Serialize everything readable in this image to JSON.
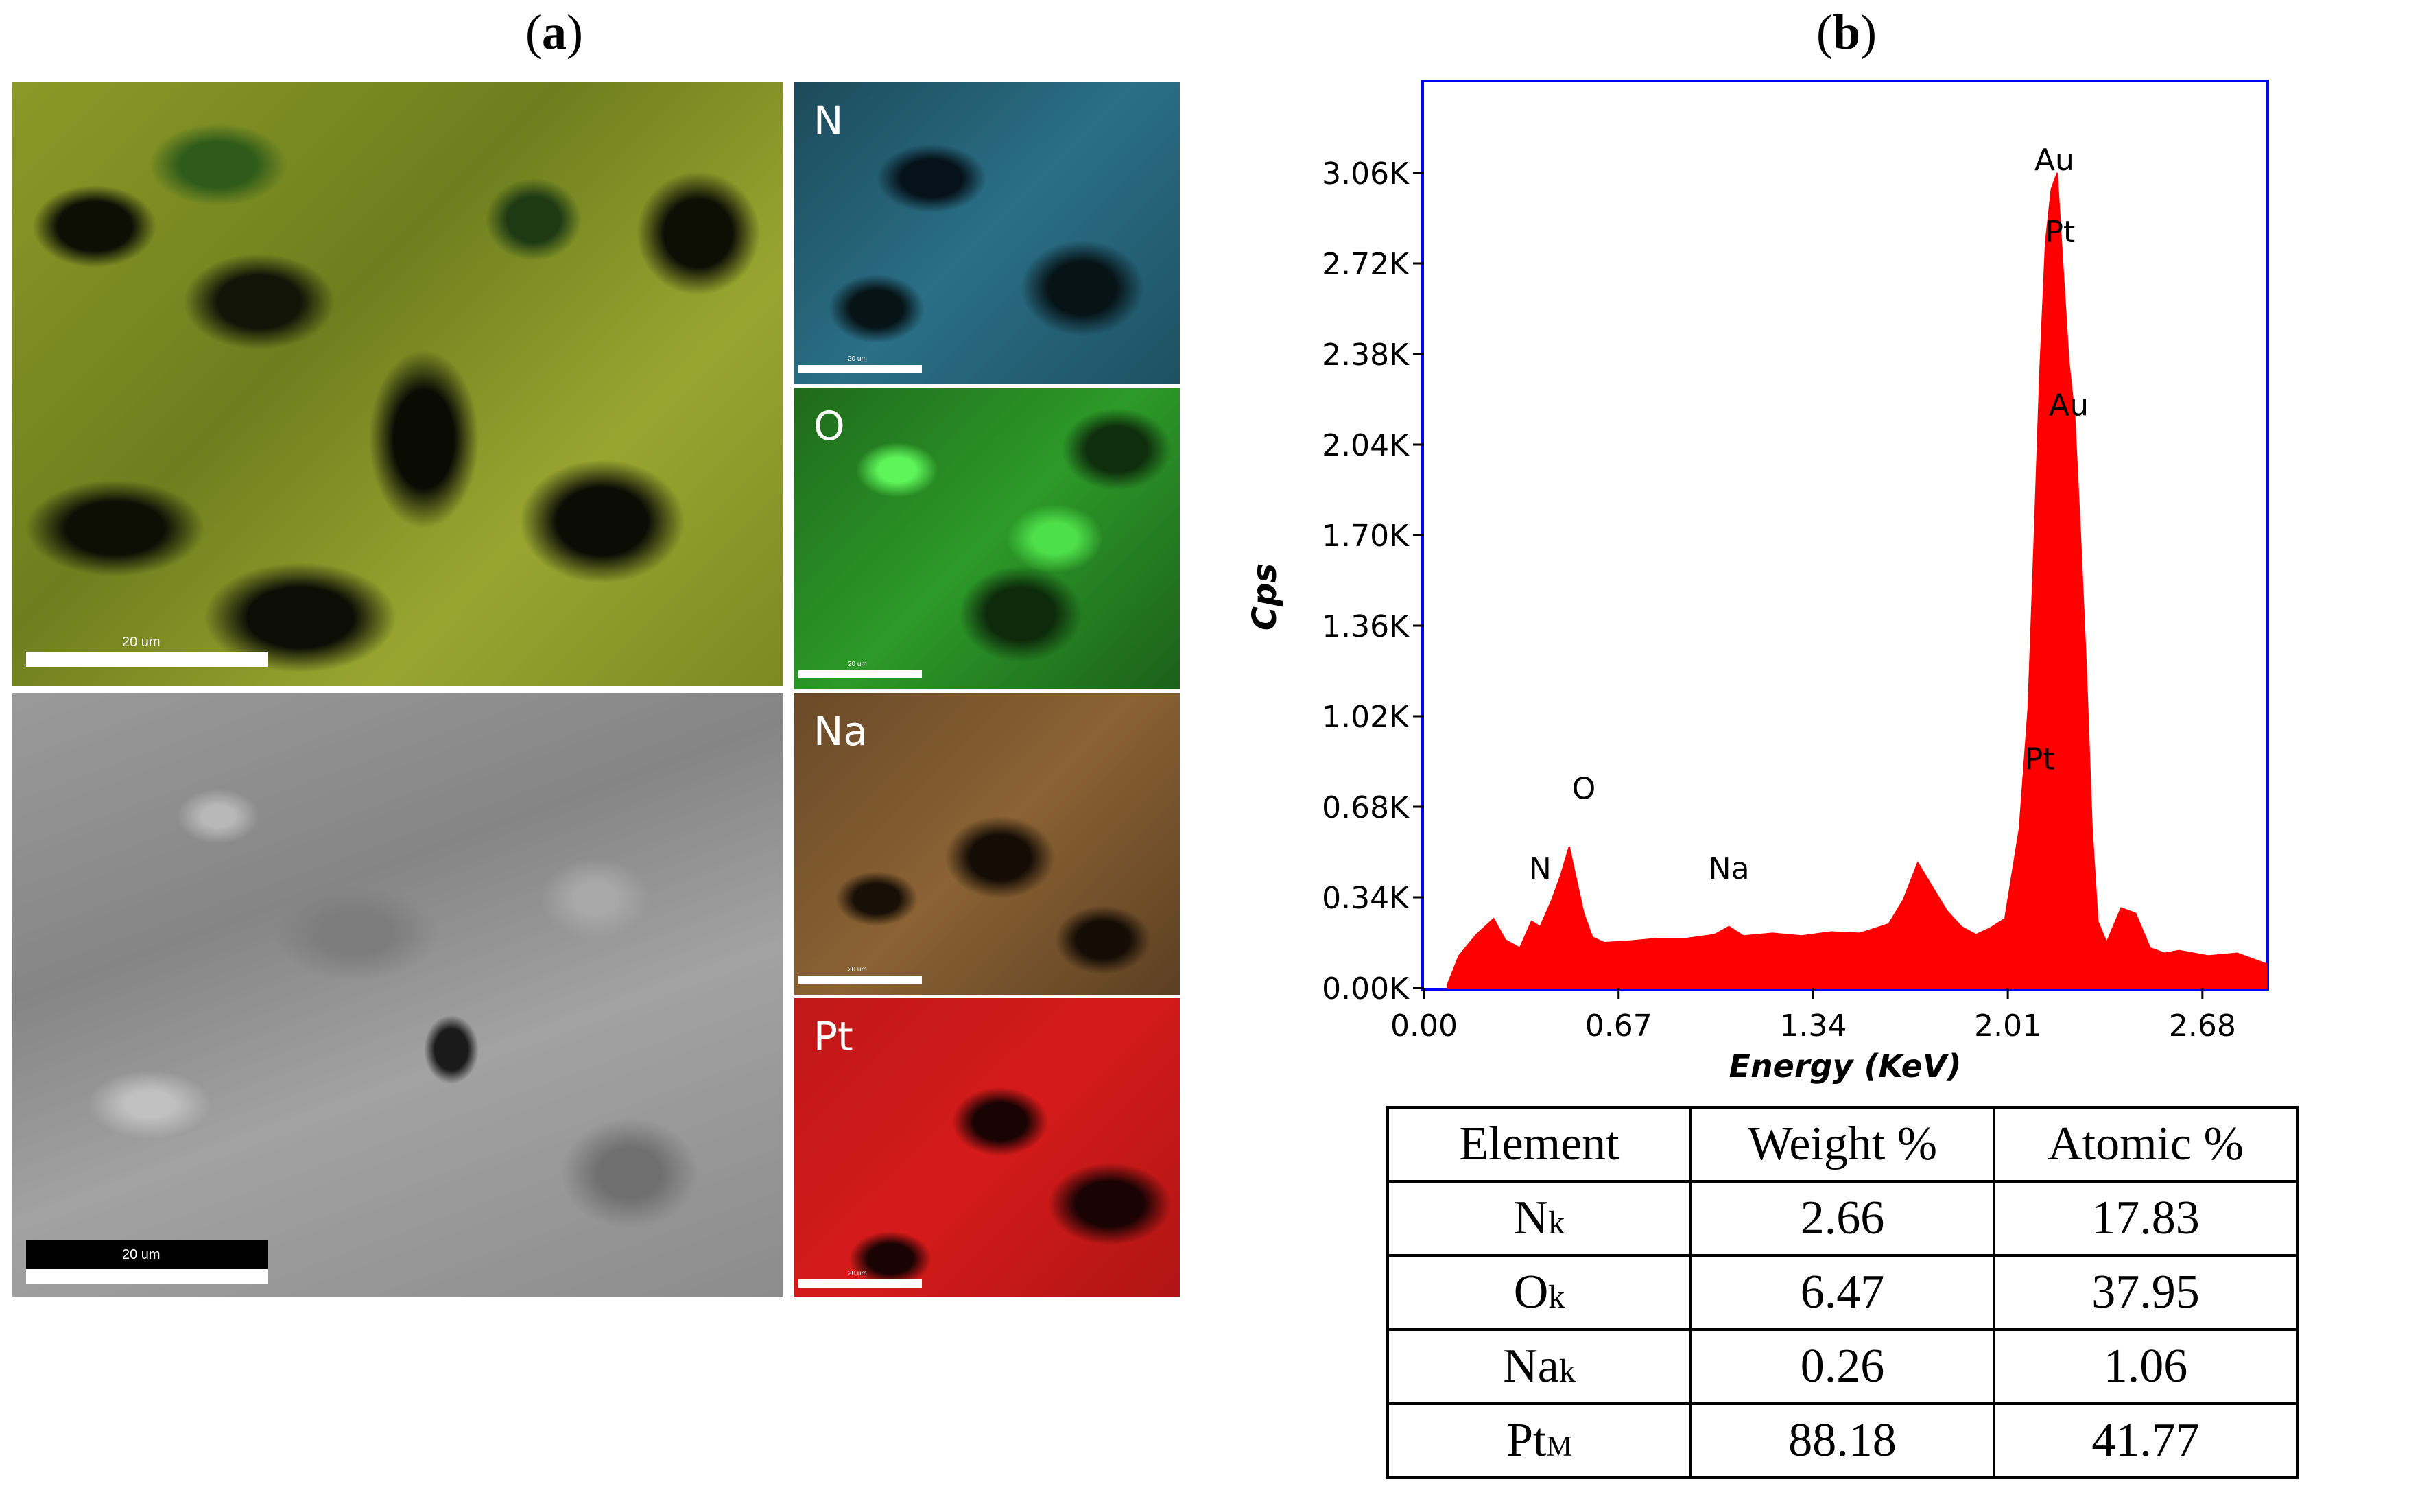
{
  "panel_a": {
    "label": "a",
    "maps": [
      {
        "element": "N",
        "color": "#2a6f86"
      },
      {
        "element": "O",
        "color": "#3fd43a"
      },
      {
        "element": "Na",
        "color": "#9a6a3a"
      },
      {
        "element": "Pt",
        "color": "#d51a1a"
      }
    ],
    "scalebar_large": "20 um",
    "scalebar_small": "20 um"
  },
  "panel_b": {
    "label": "b"
  },
  "chart_data": {
    "type": "area",
    "title": "",
    "xlabel": "Energy (KeV)",
    "ylabel": "Cps",
    "xlim": [
      0.0,
      2.9
    ],
    "ylim": [
      0,
      3400
    ],
    "xticks": [
      0.0,
      0.67,
      1.34,
      2.01,
      2.68
    ],
    "xtick_labels": [
      "0.00",
      "0.67",
      "1.34",
      "2.01",
      "2.68"
    ],
    "yticks": [
      0,
      340,
      680,
      1020,
      1360,
      1700,
      2040,
      2380,
      2720,
      3060
    ],
    "ytick_labels": [
      "0.00K",
      "0.34K",
      "0.68K",
      "1.02K",
      "1.36K",
      "1.70K",
      "2.04K",
      "2.38K",
      "2.72K",
      "3.06K"
    ],
    "series_color": "#ff0000",
    "spectrum": {
      "x": [
        0.08,
        0.12,
        0.18,
        0.24,
        0.28,
        0.33,
        0.37,
        0.4,
        0.44,
        0.47,
        0.5,
        0.52,
        0.55,
        0.58,
        0.62,
        0.7,
        0.8,
        0.9,
        1.0,
        1.05,
        1.1,
        1.2,
        1.3,
        1.4,
        1.5,
        1.6,
        1.65,
        1.7,
        1.75,
        1.8,
        1.85,
        1.9,
        1.95,
        2.0,
        2.05,
        2.08,
        2.1,
        2.12,
        2.14,
        2.16,
        2.18,
        2.2,
        2.22,
        2.24,
        2.26,
        2.28,
        2.3,
        2.32,
        2.35,
        2.4,
        2.45,
        2.5,
        2.55,
        2.6,
        2.7,
        2.8,
        2.9
      ],
      "y": [
        10,
        120,
        200,
        260,
        180,
        150,
        250,
        230,
        330,
        420,
        530,
        430,
        280,
        190,
        170,
        175,
        185,
        185,
        200,
        230,
        195,
        205,
        195,
        210,
        205,
        240,
        330,
        470,
        380,
        290,
        230,
        200,
        225,
        260,
        600,
        1050,
        1650,
        2300,
        2800,
        3000,
        3060,
        2700,
        2350,
        2150,
        1700,
        1200,
        600,
        250,
        170,
        300,
        280,
        150,
        130,
        140,
        120,
        130,
        90
      ]
    },
    "peak_labels": [
      {
        "text": "N",
        "x": 0.4,
        "y": 410
      },
      {
        "text": "O",
        "x": 0.55,
        "y": 710
      },
      {
        "text": "Na",
        "x": 1.05,
        "y": 410
      },
      {
        "text": "Pt",
        "x": 2.12,
        "y": 820
      },
      {
        "text": "Au",
        "x": 2.22,
        "y": 2150
      },
      {
        "text": "Pt",
        "x": 2.19,
        "y": 2800
      },
      {
        "text": "Au",
        "x": 2.17,
        "y": 3070
      }
    ]
  },
  "table": {
    "headers": [
      "Element",
      "Weight %",
      "Atomic %"
    ],
    "rows": [
      {
        "el": "N",
        "sub": "k",
        "weight": "2.66",
        "atomic": "17.83"
      },
      {
        "el": "O",
        "sub": "k",
        "weight": "6.47",
        "atomic": "37.95"
      },
      {
        "el": "Na",
        "sub": "k",
        "weight": "0.26",
        "atomic": "1.06"
      },
      {
        "el": "Pt",
        "sub": "M",
        "weight": "88.18",
        "atomic": "41.77"
      }
    ]
  }
}
